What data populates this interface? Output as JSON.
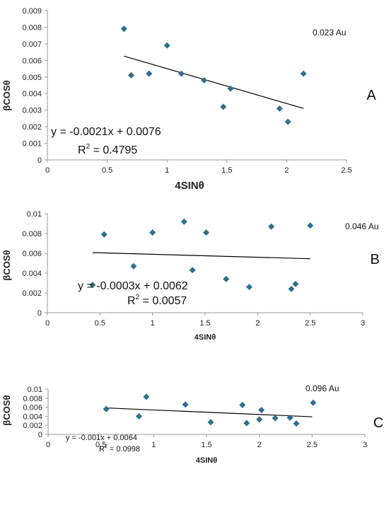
{
  "chart_data": [
    {
      "type": "scatter",
      "panel_label": "A",
      "sample_label": "0.023 Au",
      "xlabel": "4SINθ",
      "ylabel": "βCOSθ",
      "xlim": [
        0,
        2.5
      ],
      "ylim": [
        0,
        0.009
      ],
      "xticks": [
        0,
        0.5,
        1,
        1.5,
        2,
        2.5
      ],
      "xtick_labels": [
        "0",
        "0.5",
        "1",
        "1.5",
        "2",
        "2.5"
      ],
      "yticks": [
        0,
        0.001,
        0.002,
        0.003,
        0.004,
        0.005,
        0.006,
        0.007,
        0.008,
        0.009
      ],
      "ytick_labels": [
        "0",
        "0.001",
        "0.002",
        "0.003",
        "0.004",
        "0.005",
        "0.006",
        "0.007",
        "0.008",
        "0.009"
      ],
      "grid": false,
      "marker_color": "#2e6e8e",
      "points": [
        {
          "x": 0.64,
          "y": 0.0079
        },
        {
          "x": 0.7,
          "y": 0.0051
        },
        {
          "x": 0.85,
          "y": 0.0052
        },
        {
          "x": 1.0,
          "y": 0.0069
        },
        {
          "x": 1.12,
          "y": 0.0052
        },
        {
          "x": 1.31,
          "y": 0.0048
        },
        {
          "x": 1.47,
          "y": 0.0032
        },
        {
          "x": 1.53,
          "y": 0.0043
        },
        {
          "x": 1.94,
          "y": 0.0031
        },
        {
          "x": 2.01,
          "y": 0.0023
        },
        {
          "x": 2.14,
          "y": 0.0052
        }
      ],
      "trendline": {
        "slope": -0.0021,
        "intercept": 0.0076,
        "x_range": [
          0.64,
          2.14
        ]
      },
      "equation": "y = -0.0021x + 0.0076",
      "r2_label": "R",
      "r2_sup": "2",
      "r2_value": " = 0.4795"
    },
    {
      "type": "scatter",
      "panel_label": "B",
      "sample_label": "0.046 Au",
      "xlabel": "4SINθ",
      "ylabel": "βCOSθ",
      "xlim": [
        0,
        3
      ],
      "ylim": [
        0,
        0.01
      ],
      "xticks": [
        0,
        0.5,
        1,
        1.5,
        2,
        2.5,
        3
      ],
      "xtick_labels": [
        "0",
        "0.5",
        "1",
        "1.5",
        "2",
        "2.5",
        "3"
      ],
      "yticks": [
        0,
        0.002,
        0.004,
        0.006,
        0.008,
        0.01
      ],
      "ytick_labels": [
        "0",
        "0.002",
        "0.004",
        "0.006",
        "0.008",
        "0.01"
      ],
      "grid": false,
      "marker_color": "#2e6e8e",
      "points": [
        {
          "x": 0.43,
          "y": 0.0028
        },
        {
          "x": 0.54,
          "y": 0.0079
        },
        {
          "x": 0.82,
          "y": 0.0047
        },
        {
          "x": 1.0,
          "y": 0.0081
        },
        {
          "x": 1.3,
          "y": 0.0092
        },
        {
          "x": 1.38,
          "y": 0.0043
        },
        {
          "x": 1.51,
          "y": 0.0081
        },
        {
          "x": 1.7,
          "y": 0.0034
        },
        {
          "x": 1.92,
          "y": 0.0026
        },
        {
          "x": 2.13,
          "y": 0.0087
        },
        {
          "x": 2.32,
          "y": 0.0024
        },
        {
          "x": 2.36,
          "y": 0.0029
        },
        {
          "x": 2.5,
          "y": 0.0088
        }
      ],
      "trendline": {
        "slope": -0.0003,
        "intercept": 0.0062,
        "x_range": [
          0.43,
          2.5
        ]
      },
      "equation": "y = -0.0003x + 0.0062",
      "r2_label": "R",
      "r2_sup": "2",
      "r2_value": " = 0.0057"
    },
    {
      "type": "scatter",
      "panel_label": "C",
      "sample_label": "0.096 Au",
      "xlabel": "4SINθ",
      "ylabel": "βCOSθ",
      "xlim": [
        0,
        3
      ],
      "ylim": [
        0,
        0.01
      ],
      "xticks": [
        0,
        0.5,
        1,
        1.5,
        2,
        2.5,
        3
      ],
      "xtick_labels": [
        "0",
        "0.5",
        "1",
        "1.5",
        "2",
        "2.5",
        "3"
      ],
      "yticks": [
        0,
        0.002,
        0.004,
        0.006,
        0.008,
        0.01
      ],
      "ytick_labels": [
        "0",
        "0.002",
        "0.004",
        "0.006",
        "0.008",
        "0.01"
      ],
      "grid": false,
      "marker_color": "#2e6e8e",
      "points": [
        {
          "x": 0.55,
          "y": 0.0056
        },
        {
          "x": 0.86,
          "y": 0.004
        },
        {
          "x": 0.93,
          "y": 0.0083
        },
        {
          "x": 1.3,
          "y": 0.0066
        },
        {
          "x": 1.54,
          "y": 0.0027
        },
        {
          "x": 1.84,
          "y": 0.0065
        },
        {
          "x": 1.88,
          "y": 0.0025
        },
        {
          "x": 2.0,
          "y": 0.0033
        },
        {
          "x": 2.02,
          "y": 0.0054
        },
        {
          "x": 2.15,
          "y": 0.0036
        },
        {
          "x": 2.29,
          "y": 0.0037
        },
        {
          "x": 2.35,
          "y": 0.0024
        },
        {
          "x": 2.51,
          "y": 0.007
        }
      ],
      "trendline": {
        "slope": -0.001,
        "intercept": 0.0064,
        "x_range": [
          0.55,
          2.5
        ]
      },
      "equation": "y = -0.001x + 0.0064",
      "r2_label": "R",
      "r2_sup": "2",
      "r2_value": " = 0.0998"
    }
  ]
}
